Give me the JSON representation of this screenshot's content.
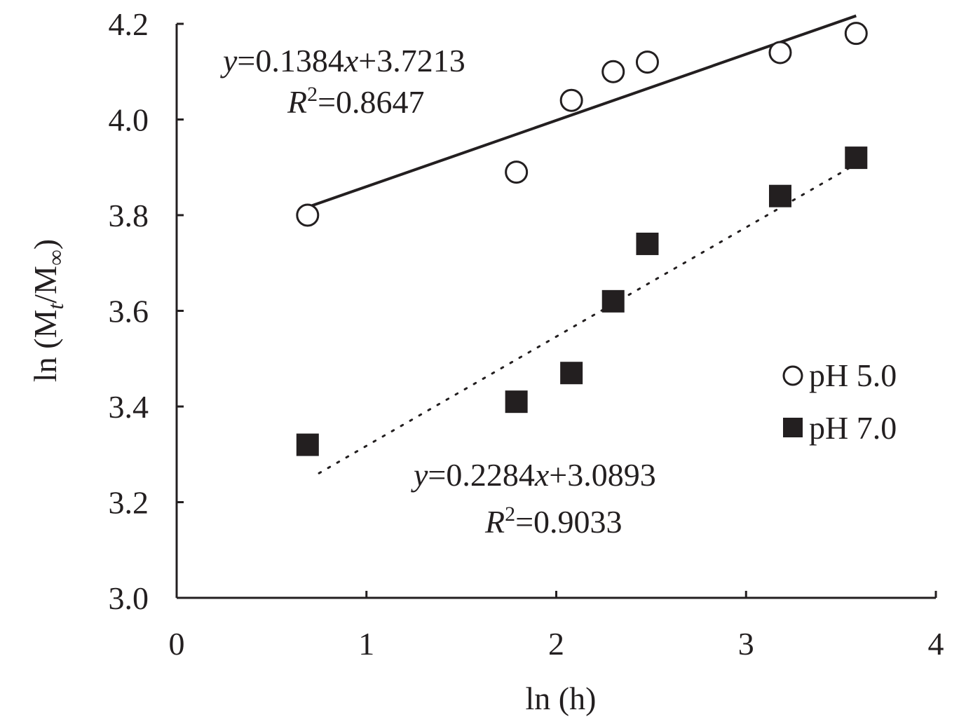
{
  "chart_data": {
    "type": "scatter",
    "title": "",
    "xlabel": "ln (h)",
    "ylabel": {
      "prefix": "ln (M",
      "sub1": "t",
      "mid": "/M",
      "sub2": "∞",
      "suffix": ")"
    },
    "xlim": [
      0,
      4
    ],
    "ylim": [
      3.0,
      4.2
    ],
    "x_ticks": [
      0,
      1,
      2,
      3,
      4
    ],
    "x_tick_labels": [
      "0",
      "1",
      "2",
      "3",
      "4"
    ],
    "y_ticks": [
      3.0,
      3.2,
      3.4,
      3.6,
      3.8,
      4.0,
      4.2
    ],
    "y_tick_labels": [
      "3.0",
      "3.2",
      "3.4",
      "3.6",
      "3.8",
      "4.0",
      "4.2"
    ],
    "grid": false,
    "legend_position": "right",
    "series": [
      {
        "name": "pH 5.0",
        "marker": "open-circle",
        "x": [
          0.69,
          1.79,
          2.08,
          2.3,
          2.48,
          3.18,
          3.58
        ],
        "y": [
          3.8,
          3.89,
          4.04,
          4.1,
          4.12,
          4.14,
          4.18
        ],
        "trendline": {
          "style": "solid",
          "slope": 0.1384,
          "intercept": 3.7213,
          "x_range": [
            0.69,
            3.58
          ]
        },
        "equation": {
          "y": "y",
          "eq": "=0.1384",
          "x": "x",
          "rest": "+3.7213"
        },
        "r2": {
          "r": "R",
          "sup": "2",
          "rest": "=0.8647"
        }
      },
      {
        "name": "pH 7.0",
        "marker": "filled-square",
        "x": [
          0.69,
          1.79,
          2.08,
          2.3,
          2.48,
          3.18,
          3.58
        ],
        "y": [
          3.32,
          3.41,
          3.47,
          3.62,
          3.74,
          3.84,
          3.92
        ],
        "trendline": {
          "style": "dotted",
          "slope": 0.2284,
          "intercept": 3.0893,
          "x_range": [
            0.75,
            3.58
          ]
        },
        "equation": {
          "y": "y",
          "eq": "=0.2284",
          "x": "x",
          "rest": "+3.0893"
        },
        "r2": {
          "r": "R",
          "sup": "2",
          "rest": "=0.9033"
        }
      }
    ],
    "colors": {
      "ink": "#231f20",
      "background": "#ffffff"
    }
  }
}
